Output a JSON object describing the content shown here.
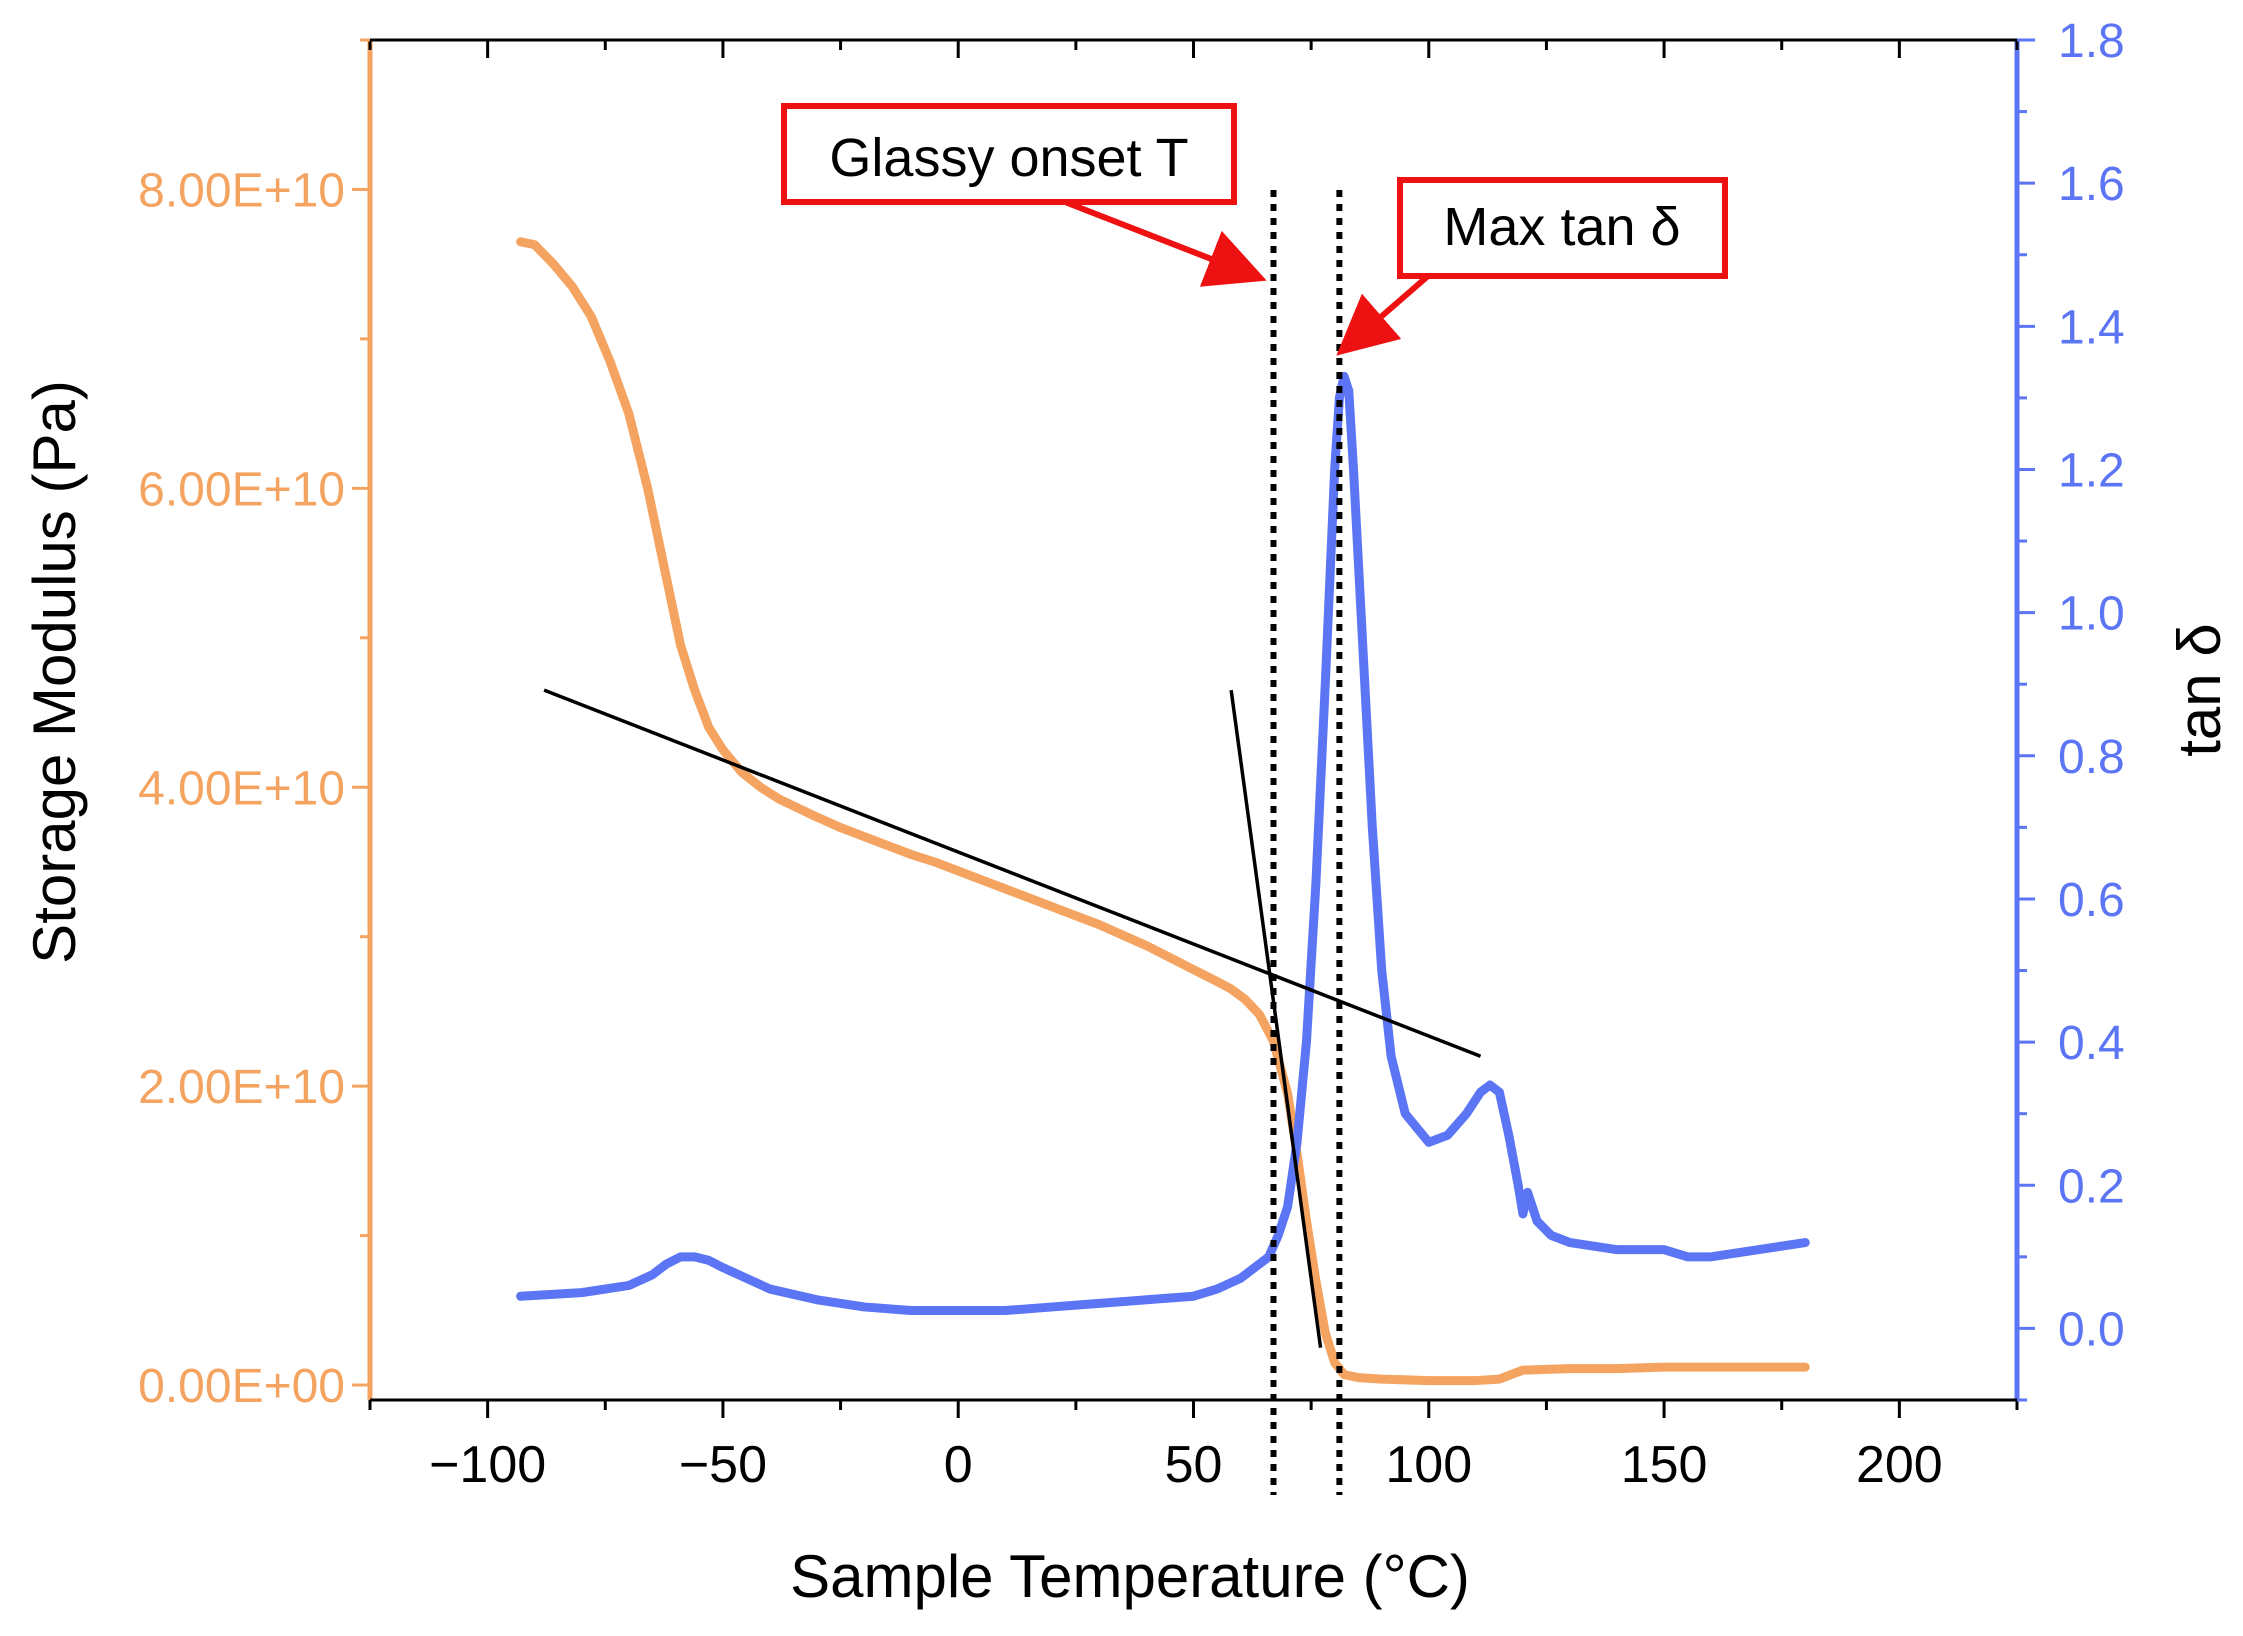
{
  "chart_data": {
    "type": "line",
    "title": "",
    "xlabel": "Sample Temperature (°C)",
    "ylabel_left": "Storage Modulus (Pa)",
    "ylabel_right": "tan δ",
    "xlim": [
      -125,
      225
    ],
    "ylim_left": [
      -1000000000,
      90000000000
    ],
    "ylim_right": [
      -0.1,
      1.8
    ],
    "x_ticks": [
      -100,
      -50,
      0,
      50,
      100,
      150,
      200
    ],
    "x_tick_labels": [
      "−100",
      "−50",
      "0",
      "50",
      "100",
      "150",
      "200"
    ],
    "y_left_ticks": [
      0,
      20000000000,
      40000000000,
      60000000000,
      80000000000
    ],
    "y_left_tick_labels": [
      "0.00E+00",
      "2.00E+10",
      "4.00E+10",
      "6.00E+10",
      "8.00E+10"
    ],
    "y_right_ticks": [
      0.0,
      0.2,
      0.4,
      0.6,
      0.8,
      1.0,
      1.2,
      1.4,
      1.6,
      1.8
    ],
    "y_right_tick_labels": [
      "0.0",
      "0.2",
      "0.4",
      "0.6",
      "0.8",
      "1.0",
      "1.2",
      "1.4",
      "1.6",
      "1.8"
    ],
    "colors": {
      "storage_modulus": "#f4a460",
      "tan_delta": "#5b75f5",
      "annotation": "#ee1111",
      "tangent_lines": "#000000",
      "axis_right": "#5b75f5",
      "axis_left": "#f4a460",
      "axis_bottom": "#000000"
    },
    "series": [
      {
        "name": "Storage Modulus",
        "axis": "left",
        "x": [
          -93,
          -90,
          -86,
          -82,
          -78,
          -74,
          -70,
          -66,
          -62,
          -59,
          -56,
          -53,
          -50,
          -46,
          -42,
          -38,
          -34,
          -30,
          -25,
          -20,
          -15,
          -10,
          -5,
          0,
          5,
          10,
          15,
          20,
          25,
          30,
          35,
          40,
          45,
          50,
          55,
          58,
          61,
          64,
          67,
          70,
          72,
          74,
          76,
          78,
          80,
          82,
          85,
          90,
          100,
          110,
          115,
          120,
          130,
          140,
          150,
          160,
          170,
          180
        ],
        "values": [
          76500000000,
          76300000000,
          75000000000,
          73500000000,
          71500000000,
          68500000000,
          65000000000,
          60000000000,
          54000000000,
          49500000000,
          46500000000,
          44000000000,
          42500000000,
          41000000000,
          40000000000,
          39200000000,
          38600000000,
          38000000000,
          37300000000,
          36700000000,
          36100000000,
          35500000000,
          35000000000,
          34400000000,
          33800000000,
          33200000000,
          32600000000,
          32000000000,
          31400000000,
          30800000000,
          30100000000,
          29400000000,
          28600000000,
          27800000000,
          27000000000,
          26500000000,
          25800000000,
          24800000000,
          23000000000,
          19500000000,
          15500000000,
          11000000000,
          7000000000,
          3500000000,
          1500000000,
          700000000,
          500000000,
          400000000,
          300000000,
          300000000,
          400000000,
          1000000000,
          1100000000,
          1100000000,
          1200000000,
          1200000000,
          1200000000,
          1200000000
        ]
      },
      {
        "name": "tan δ",
        "axis": "right",
        "x": [
          -93,
          -80,
          -70,
          -65,
          -62,
          -59,
          -56,
          -53,
          -50,
          -45,
          -40,
          -30,
          -20,
          -10,
          0,
          10,
          20,
          30,
          40,
          50,
          55,
          60,
          63,
          66,
          68,
          70,
          72,
          74,
          76,
          78,
          80,
          81,
          82,
          83,
          84,
          86,
          88,
          90,
          92,
          95,
          100,
          104,
          108,
          111,
          113,
          115,
          117,
          119,
          120,
          121,
          123,
          126,
          130,
          140,
          150,
          155,
          160,
          170,
          180
        ],
        "values": [
          0.045,
          0.05,
          0.06,
          0.075,
          0.09,
          0.1,
          0.1,
          0.095,
          0.085,
          0.07,
          0.055,
          0.04,
          0.03,
          0.025,
          0.025,
          0.025,
          0.03,
          0.035,
          0.04,
          0.045,
          0.055,
          0.07,
          0.085,
          0.1,
          0.13,
          0.17,
          0.26,
          0.4,
          0.62,
          0.9,
          1.2,
          1.3,
          1.33,
          1.31,
          1.2,
          0.95,
          0.7,
          0.5,
          0.38,
          0.3,
          0.26,
          0.27,
          0.3,
          0.33,
          0.34,
          0.33,
          0.27,
          0.2,
          0.16,
          0.19,
          0.15,
          0.13,
          0.12,
          0.11,
          0.11,
          0.1,
          0.1,
          0.11,
          0.12
        ]
      }
    ],
    "tangent_lines": [
      {
        "name": "glassy-region-tangent",
        "x": [
          -88,
          111
        ],
        "values": [
          46500000000,
          22000000000
        ]
      },
      {
        "name": "transition-tangent",
        "x": [
          58,
          77
        ],
        "values": [
          46500000000,
          2500000000
        ]
      }
    ],
    "vertical_lines": [
      {
        "name": "glassy-onset-line",
        "x": 67
      },
      {
        "name": "max-tan-delta-line",
        "x": 81
      }
    ],
    "annotations": [
      {
        "name": "glassy-onset",
        "text": "Glassy onset T",
        "target_x": 67,
        "target_right": 1.47
      },
      {
        "name": "max-tan-delta",
        "text": "Max tan δ",
        "target_x": 81,
        "target_right": 1.37
      }
    ]
  }
}
